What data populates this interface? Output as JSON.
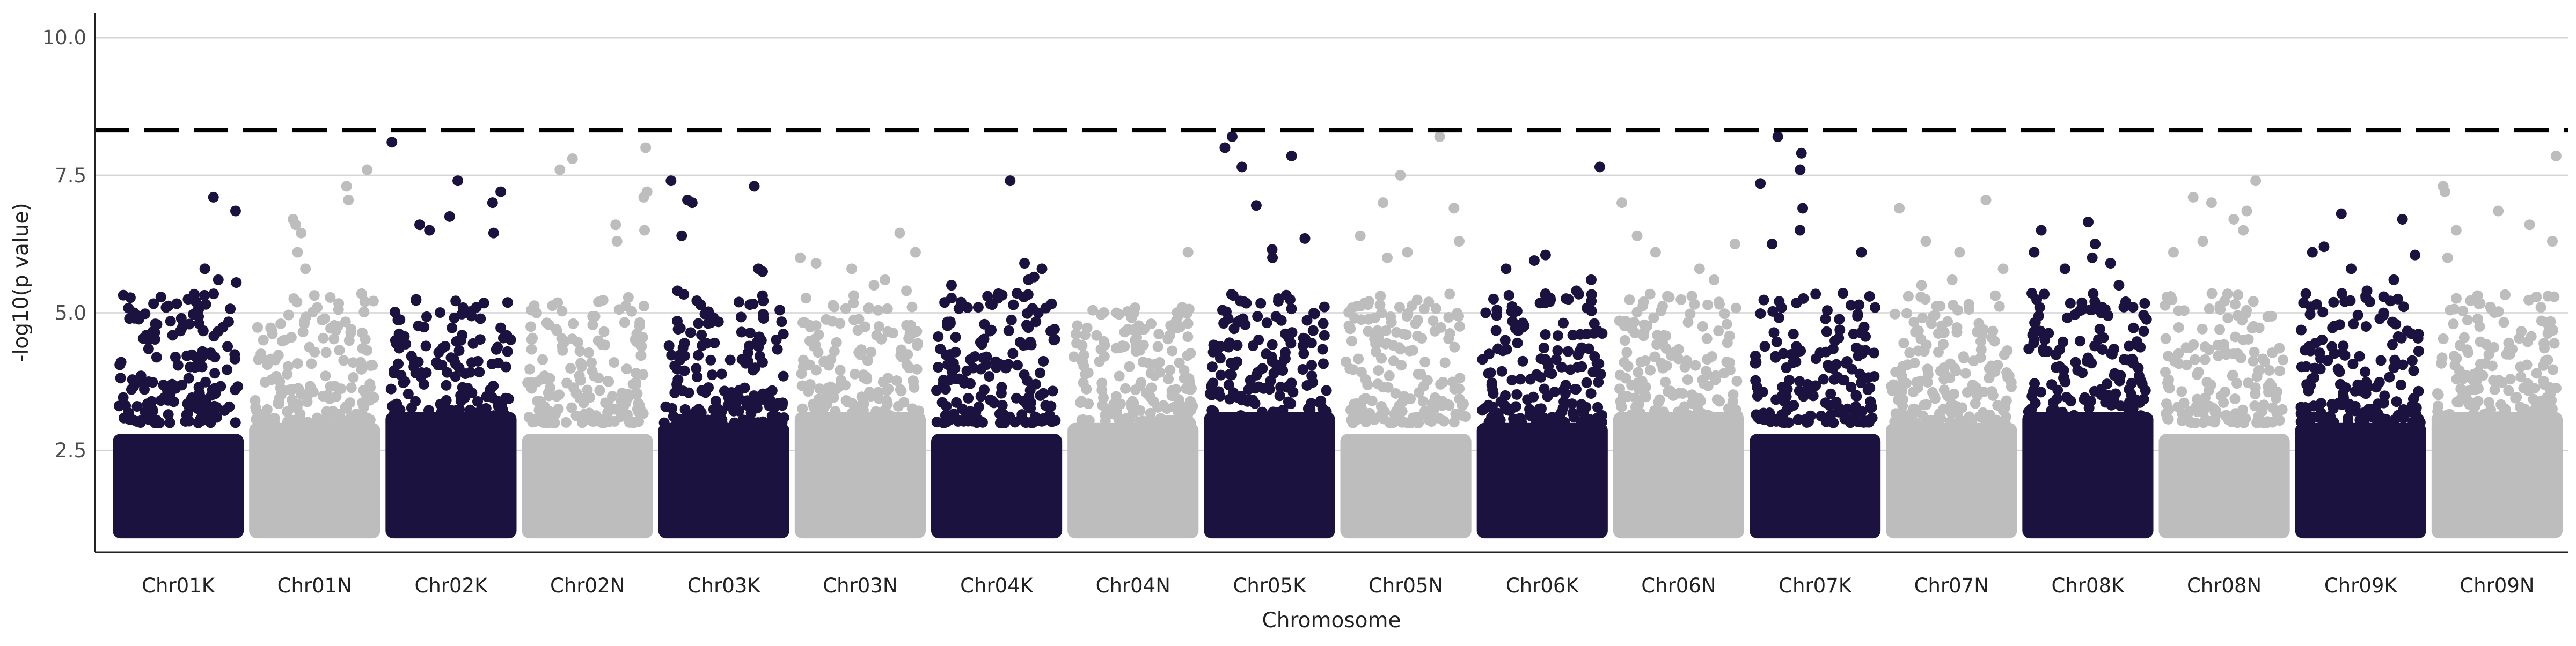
{
  "chart_data": {
    "type": "scatter",
    "title": "",
    "xlabel": "Chromosome",
    "ylabel": "-log10(p value)",
    "ylim": [
      0.65,
      10.45
    ],
    "yticks": [
      "2.5",
      "5.0",
      "7.5",
      "10.0"
    ],
    "ytick_values": [
      2.5,
      5.0,
      7.5,
      10.0
    ],
    "grid": "horizontal major lines",
    "legend": "none",
    "threshold": 8.32,
    "threshold_style": "dashed black line",
    "colors": [
      "#1c1240",
      "#bdbdbd"
    ],
    "min_value": 1.0,
    "categories": [
      "Chr01K",
      "Chr01N",
      "Chr02K",
      "Chr02N",
      "Chr03K",
      "Chr03N",
      "Chr04K",
      "Chr04N",
      "Chr05K",
      "Chr05N",
      "Chr06K",
      "Chr06N",
      "Chr07K",
      "Chr07N",
      "Chr08K",
      "Chr08N",
      "Chr09K",
      "Chr09N"
    ],
    "chromosome_top_points": [
      {
        "category": "Chr01K",
        "values": [
          6.85,
          7.1,
          5.8,
          5.6,
          5.55,
          5.2,
          5.1,
          5.0
        ]
      },
      {
        "category": "Chr01N",
        "values": [
          7.6,
          7.3,
          7.05,
          6.7,
          6.6,
          6.45,
          6.1,
          5.8
        ]
      },
      {
        "category": "Chr02K",
        "values": [
          8.1,
          7.4,
          7.2,
          7.0,
          6.75,
          6.6,
          6.5,
          6.45
        ]
      },
      {
        "category": "Chr02N",
        "values": [
          8.0,
          7.8,
          7.6,
          7.2,
          7.1,
          6.6,
          6.5,
          6.3
        ]
      },
      {
        "category": "Chr03K",
        "values": [
          7.4,
          7.3,
          7.05,
          7.0,
          6.4,
          5.8,
          5.75,
          5.4
        ]
      },
      {
        "category": "Chr03N",
        "values": [
          6.45,
          6.1,
          6.0,
          5.9,
          5.8,
          5.6,
          5.5,
          5.4
        ]
      },
      {
        "category": "Chr04K",
        "values": [
          7.4,
          5.9,
          5.8,
          5.65,
          5.6,
          5.5,
          5.3,
          5.1
        ]
      },
      {
        "category": "Chr04N",
        "values": [
          6.1,
          5.1,
          5.0,
          4.8,
          4.7,
          4.5,
          4.4,
          4.3
        ]
      },
      {
        "category": "Chr05K",
        "values": [
          8.2,
          8.0,
          7.85,
          7.65,
          6.95,
          6.35,
          6.15,
          6.0
        ]
      },
      {
        "category": "Chr05N",
        "values": [
          8.2,
          7.5,
          7.0,
          6.9,
          6.4,
          6.3,
          6.1,
          6.0
        ]
      },
      {
        "category": "Chr06K",
        "values": [
          7.65,
          6.05,
          5.95,
          5.8,
          5.6,
          5.4,
          5.2,
          5.0
        ]
      },
      {
        "category": "Chr06N",
        "values": [
          7.0,
          6.4,
          6.25,
          6.1,
          5.8,
          5.6,
          5.3,
          5.2
        ]
      },
      {
        "category": "Chr07K",
        "values": [
          8.2,
          7.9,
          7.6,
          7.35,
          6.9,
          6.5,
          6.25,
          6.1
        ]
      },
      {
        "category": "Chr07N",
        "values": [
          7.05,
          6.9,
          6.3,
          6.1,
          5.8,
          5.6,
          5.5,
          5.3
        ]
      },
      {
        "category": "Chr08K",
        "values": [
          6.65,
          6.5,
          6.25,
          6.1,
          6.0,
          5.9,
          5.8,
          5.5
        ]
      },
      {
        "category": "Chr08N",
        "values": [
          7.4,
          7.1,
          7.0,
          6.85,
          6.7,
          6.5,
          6.3,
          6.1
        ]
      },
      {
        "category": "Chr09K",
        "values": [
          6.8,
          6.7,
          6.2,
          6.1,
          6.05,
          5.8,
          5.6,
          5.4
        ]
      },
      {
        "category": "Chr09N",
        "values": [
          7.85,
          7.3,
          7.2,
          6.85,
          6.6,
          6.5,
          6.3,
          6.0
        ]
      }
    ]
  }
}
